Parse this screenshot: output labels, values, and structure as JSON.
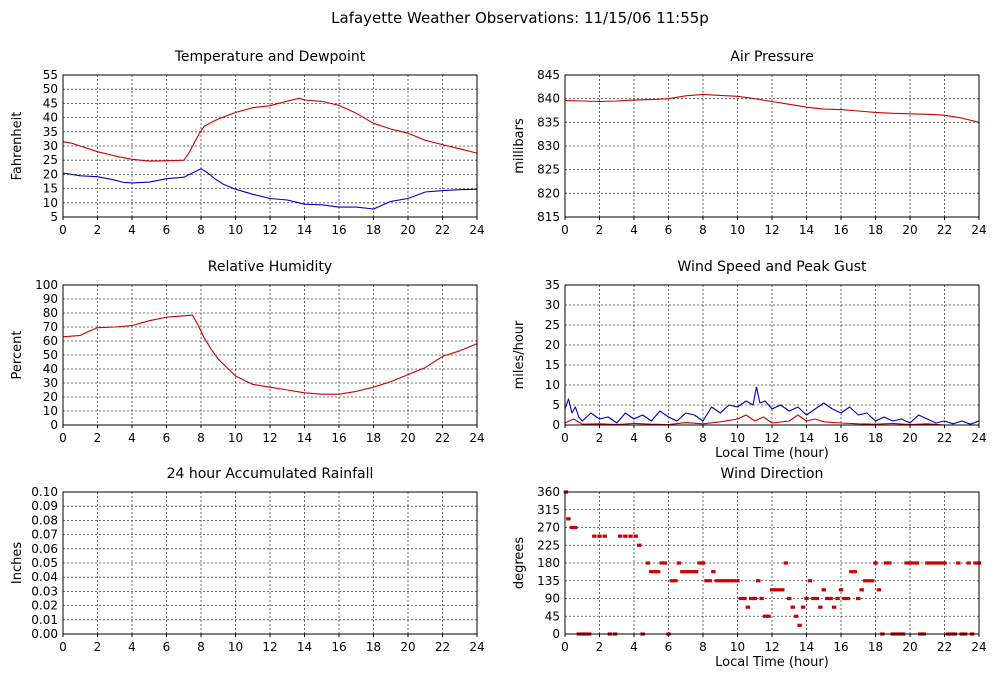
{
  "page": {
    "title": "Lafayette Weather Observations: 11/15/06 11:55p"
  },
  "colors": {
    "red": "#cc0000",
    "blue": "#0000bb",
    "grid": "#444444",
    "frame": "#000000"
  },
  "chart_data": [
    {
      "id": "temp",
      "type": "line",
      "title": "Temperature and Dewpoint",
      "xlabel": "",
      "ylabel": "Fahrenheit",
      "xlim": [
        0,
        24
      ],
      "ylim": [
        5,
        55
      ],
      "xticks": [
        0,
        2,
        4,
        6,
        8,
        10,
        12,
        14,
        16,
        18,
        20,
        22,
        24
      ],
      "yticks": [
        5,
        10,
        15,
        20,
        25,
        30,
        35,
        40,
        45,
        50,
        55
      ],
      "grid": true,
      "series": [
        {
          "color": "#cc0000",
          "x": [
            0,
            0.5,
            1,
            2,
            3,
            4,
            5,
            6,
            7,
            7.3,
            7.6,
            7.9,
            8.2,
            8.6,
            9,
            10,
            11,
            12,
            13,
            13.7,
            14,
            15,
            16,
            17,
            18,
            19,
            20,
            21,
            22,
            23,
            24
          ],
          "y": [
            31.5,
            31,
            30,
            28,
            26.5,
            25.3,
            24.7,
            24.8,
            25,
            27.5,
            31,
            34.5,
            37,
            38.3,
            39.5,
            41.8,
            43.5,
            44.2,
            45.8,
            46.8,
            46.2,
            45.7,
            44.3,
            41.5,
            38,
            36,
            34.5,
            32,
            30.5,
            29,
            27.5
          ]
        },
        {
          "color": "#0000bb",
          "x": [
            0,
            1,
            2,
            3,
            3.5,
            4,
            5,
            6,
            7,
            7.5,
            8,
            8.4,
            8.8,
            9.3,
            10,
            11,
            12,
            13,
            14,
            15,
            16,
            17,
            18,
            19,
            20,
            21,
            22,
            23,
            24
          ],
          "y": [
            20.5,
            19.5,
            19.2,
            18,
            17.2,
            17,
            17.3,
            18.5,
            19,
            20.5,
            22,
            20.5,
            18.5,
            16.5,
            14.8,
            13,
            11.5,
            11,
            9.5,
            9.3,
            8.5,
            8.5,
            7.8,
            10.5,
            11.5,
            13.8,
            14.3,
            14.6,
            14.8
          ]
        }
      ]
    },
    {
      "id": "pressure",
      "type": "line",
      "title": "Air Pressure",
      "xlabel": "",
      "ylabel": "millibars",
      "xlim": [
        0,
        24
      ],
      "ylim": [
        815,
        845
      ],
      "xticks": [
        0,
        2,
        4,
        6,
        8,
        10,
        12,
        14,
        16,
        18,
        20,
        22,
        24
      ],
      "yticks": [
        815,
        820,
        825,
        830,
        835,
        840,
        845
      ],
      "grid": true,
      "series": [
        {
          "color": "#cc0000",
          "x": [
            0,
            1,
            2,
            3,
            4,
            5,
            6,
            7,
            8,
            9,
            10,
            11,
            12,
            13,
            14,
            15,
            16,
            17,
            18,
            19,
            20,
            21,
            22,
            23,
            24
          ],
          "y": [
            839.6,
            839.5,
            839.4,
            839.5,
            839.7,
            839.8,
            840.0,
            840.6,
            840.9,
            840.7,
            840.5,
            840.0,
            839.4,
            838.8,
            838.2,
            837.8,
            837.7,
            837.4,
            837.1,
            836.9,
            836.8,
            836.7,
            836.5,
            835.9,
            835.0
          ]
        }
      ]
    },
    {
      "id": "humidity",
      "type": "line",
      "title": "Relative Humidity",
      "xlabel": "",
      "ylabel": "Percent",
      "xlim": [
        0,
        24
      ],
      "ylim": [
        0,
        100
      ],
      "xticks": [
        0,
        2,
        4,
        6,
        8,
        10,
        12,
        14,
        16,
        18,
        20,
        22,
        24
      ],
      "yticks": [
        0,
        10,
        20,
        30,
        40,
        50,
        60,
        70,
        80,
        90,
        100
      ],
      "grid": true,
      "series": [
        {
          "color": "#cc0000",
          "x": [
            0,
            1,
            1.5,
            2,
            3,
            4,
            5,
            6,
            7,
            7.5,
            7.8,
            8.2,
            8.6,
            9,
            10,
            11,
            12,
            13,
            14,
            15,
            16,
            17,
            18,
            19,
            20,
            21,
            22,
            23,
            24
          ],
          "y": [
            63,
            64,
            67,
            69.5,
            70,
            71,
            74.5,
            77,
            78,
            78.5,
            72,
            62,
            54,
            47,
            35,
            29,
            27,
            25,
            23,
            22,
            22,
            24,
            27,
            31,
            36,
            41,
            49,
            53,
            58
          ]
        }
      ]
    },
    {
      "id": "wind",
      "type": "line",
      "title": "Wind Speed and Peak Gust",
      "xlabel": "Local Time (hour)",
      "ylabel": "miles/hour",
      "xlim": [
        0,
        24
      ],
      "ylim": [
        0,
        35
      ],
      "xticks": [
        0,
        2,
        4,
        6,
        8,
        10,
        12,
        14,
        16,
        18,
        20,
        22,
        24
      ],
      "yticks": [
        0,
        5,
        10,
        15,
        20,
        25,
        30,
        35
      ],
      "grid": true,
      "series": [
        {
          "color": "#0000bb",
          "x": [
            0,
            0.2,
            0.4,
            0.6,
            0.8,
            1.0,
            1.5,
            2,
            2.5,
            3,
            3.5,
            4,
            4.5,
            5,
            5.5,
            6,
            6.5,
            7,
            7.5,
            8,
            8.5,
            9,
            9.5,
            10,
            10.5,
            10.9,
            11.1,
            11.3,
            11.6,
            12,
            12.5,
            13,
            13.5,
            14,
            14.5,
            15,
            15.5,
            16,
            16.5,
            17,
            17.5,
            18,
            18.5,
            19,
            19.5,
            20,
            20.5,
            21,
            21.5,
            22,
            22.5,
            23,
            23.5,
            24
          ],
          "y": [
            4,
            6.5,
            3,
            4.5,
            2,
            1,
            3,
            1.5,
            2,
            0.5,
            3,
            1.5,
            2.5,
            1,
            3.5,
            2,
            1,
            3,
            2.5,
            1,
            4.5,
            3,
            5,
            4.5,
            6,
            5,
            9.5,
            5.5,
            6,
            4,
            5,
            3.5,
            4.5,
            2.5,
            4,
            5.5,
            4,
            3,
            4.5,
            2.5,
            3,
            1,
            2,
            1,
            1.5,
            0.5,
            2.5,
            1.5,
            0.5,
            1,
            0.3,
            1,
            0.2,
            1
          ]
        },
        {
          "color": "#cc0000",
          "x": [
            0,
            0.5,
            1,
            2,
            3,
            4,
            5,
            6,
            7,
            8,
            9,
            10,
            10.5,
            11,
            11.5,
            12,
            13,
            13.5,
            14,
            14.5,
            15,
            16,
            17,
            18,
            19,
            20,
            21,
            22,
            23,
            24
          ],
          "y": [
            0.5,
            1.5,
            0.2,
            0.3,
            0.1,
            0.4,
            0.2,
            0.1,
            0.6,
            0.3,
            0.8,
            1.5,
            2.5,
            1.0,
            2.0,
            0.5,
            1.0,
            2.5,
            1.0,
            1.5,
            0.8,
            0.5,
            0.3,
            0.2,
            0.4,
            0.1,
            0.3,
            0,
            0,
            0
          ]
        }
      ]
    },
    {
      "id": "rain",
      "type": "line",
      "title": "24 hour Accumulated Rainfall",
      "xlabel": "",
      "ylabel": "Inches",
      "xlim": [
        0,
        24
      ],
      "ylim": [
        0,
        0.1
      ],
      "xticks": [
        0,
        2,
        4,
        6,
        8,
        10,
        12,
        14,
        16,
        18,
        20,
        22,
        24
      ],
      "yticks": [
        "0.00",
        "0.01",
        "0.02",
        "0.03",
        "0.04",
        "0.05",
        "0.06",
        "0.07",
        "0.08",
        "0.09",
        "0.10"
      ],
      "grid": true,
      "series": [
        {
          "color": "#cc0000",
          "x": [
            0,
            24
          ],
          "y": [
            0,
            0
          ]
        }
      ]
    },
    {
      "id": "direction",
      "type": "scatter",
      "title": "Wind Direction",
      "xlabel": "Local Time (hour)",
      "ylabel": "degrees",
      "xlim": [
        0,
        24
      ],
      "ylim": [
        0,
        360
      ],
      "xticks": [
        0,
        2,
        4,
        6,
        8,
        10,
        12,
        14,
        16,
        18,
        20,
        22,
        24
      ],
      "yticks": [
        0,
        45,
        90,
        135,
        180,
        225,
        270,
        315,
        360
      ],
      "grid": true,
      "series": [
        {
          "color": "#cc0000",
          "x": [
            0.05,
            0.2,
            0.4,
            0.6,
            0.8,
            1.0,
            1.2,
            1.4,
            1.7,
            2.0,
            2.3,
            2.6,
            2.9,
            3.2,
            3.5,
            3.8,
            4.1,
            4.3,
            4.5,
            4.8,
            5.0,
            5.2,
            5.4,
            5.6,
            5.8,
            6.0,
            6.2,
            6.4,
            6.6,
            6.8,
            7.0,
            7.2,
            7.4,
            7.6,
            7.8,
            8.0,
            8.2,
            8.4,
            8.6,
            8.8,
            9.0,
            9.2,
            9.4,
            9.6,
            9.8,
            10.0,
            10.2,
            10.4,
            10.6,
            10.8,
            11.0,
            11.2,
            11.4,
            11.6,
            11.8,
            12.0,
            12.2,
            12.4,
            12.6,
            12.8,
            13.0,
            13.2,
            13.4,
            13.6,
            13.8,
            14.0,
            14.2,
            14.4,
            14.6,
            14.8,
            15.0,
            15.2,
            15.4,
            15.6,
            15.8,
            16.0,
            16.2,
            16.4,
            16.6,
            16.8,
            17.0,
            17.2,
            17.4,
            17.6,
            17.8,
            18.0,
            18.2,
            18.4,
            18.6,
            18.8,
            19.0,
            19.2,
            19.4,
            19.6,
            19.8,
            20.0,
            20.2,
            20.4,
            20.6,
            20.8,
            21.0,
            21.2,
            21.4,
            21.6,
            21.8,
            22.0,
            22.2,
            22.4,
            22.6,
            22.8,
            23.0,
            23.2,
            23.4,
            23.6,
            23.8,
            24.0
          ],
          "y": [
            360,
            292,
            270,
            270,
            0,
            0,
            0,
            0,
            248,
            248,
            248,
            0,
            0,
            248,
            248,
            248,
            248,
            225,
            0,
            180,
            158,
            158,
            158,
            180,
            180,
            0,
            135,
            135,
            180,
            158,
            158,
            158,
            158,
            158,
            180,
            180,
            135,
            135,
            158,
            135,
            135,
            135,
            135,
            135,
            135,
            135,
            90,
            90,
            68,
            90,
            90,
            135,
            90,
            45,
            45,
            112,
            112,
            112,
            112,
            180,
            90,
            68,
            45,
            22,
            68,
            90,
            135,
            90,
            90,
            68,
            112,
            90,
            90,
            68,
            90,
            112,
            90,
            90,
            158,
            158,
            90,
            112,
            135,
            135,
            135,
            180,
            112,
            0,
            180,
            180,
            0,
            0,
            0,
            0,
            180,
            180,
            180,
            180,
            0,
            0,
            180,
            180,
            180,
            180,
            180,
            180,
            0,
            0,
            0,
            180,
            0,
            0,
            180,
            0,
            180,
            180
          ]
        }
      ]
    }
  ]
}
